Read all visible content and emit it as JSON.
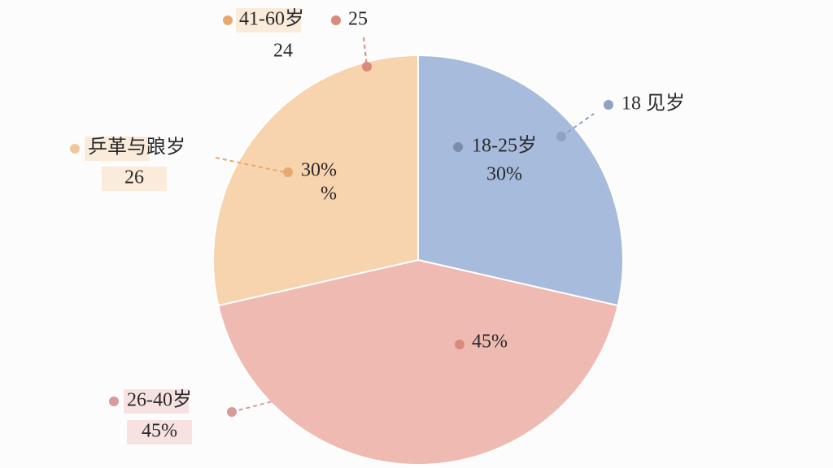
{
  "chart_data": {
    "type": "pie",
    "categories": [
      "18-25岁",
      "26-40岁",
      "41-60岁"
    ],
    "values": [
      30,
      45,
      30
    ],
    "value_labels": [
      "30%",
      "45%",
      "30%"
    ],
    "colors": [
      "#a7bcdc",
      "#efbab1",
      "#f7d3ae"
    ],
    "annotations": [
      "18 见岁",
      "24",
      "25",
      "乒革与踉岁",
      "26",
      "%"
    ]
  }
}
